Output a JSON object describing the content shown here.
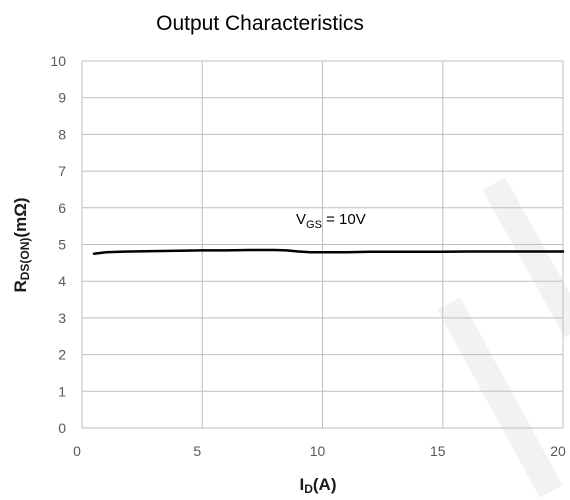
{
  "chart_data": {
    "type": "line",
    "title": "Output Characteristics",
    "xlabel": "ID(A)",
    "xlabel_parts": {
      "main": "I",
      "sub": "D",
      "unit": "(A)"
    },
    "ylabel": "RDS(ON)(mΩ)",
    "ylabel_parts": {
      "main": "R",
      "sub": "DS(ON)",
      "unit": "(mΩ)"
    },
    "xlim": [
      0,
      20
    ],
    "ylim": [
      0,
      10
    ],
    "x_ticks": [
      0,
      5,
      10,
      15,
      20
    ],
    "y_ticks": [
      0,
      1,
      2,
      3,
      4,
      5,
      6,
      7,
      8,
      9,
      10
    ],
    "grid": {
      "vertical": true,
      "horizontal": true
    },
    "annotation": {
      "main": "V",
      "sub": "GS",
      "text": " = 10V"
    },
    "series": [
      {
        "x": [
          0.5,
          1,
          2,
          3,
          4,
          5,
          6,
          7,
          8,
          8.5,
          9,
          9.5,
          10,
          11,
          12,
          13,
          14,
          15,
          16,
          17,
          18,
          19,
          20
        ],
        "y": [
          4.75,
          4.79,
          4.81,
          4.82,
          4.83,
          4.84,
          4.84,
          4.85,
          4.85,
          4.84,
          4.81,
          4.79,
          4.79,
          4.79,
          4.8,
          4.8,
          4.8,
          4.8,
          4.81,
          4.81,
          4.81,
          4.81,
          4.81
        ]
      }
    ],
    "colors": {
      "line": "#000000",
      "grid": "#bfbfbf",
      "tick": "#595959",
      "watermark": "#f2f2f2"
    }
  }
}
